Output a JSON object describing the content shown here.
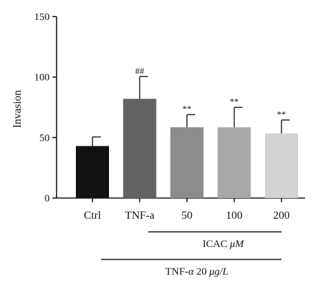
{
  "chart_data": {
    "type": "bar",
    "title": "",
    "xlabel": "",
    "ylabel": "Invasion",
    "ylim": [
      0,
      150
    ],
    "yticks": [
      0,
      50,
      100,
      150
    ],
    "grid": false,
    "categories": [
      "Ctrl",
      "TNF-a",
      "50",
      "100",
      "200"
    ],
    "values": [
      43,
      82,
      58.5,
      58.5,
      53.5
    ],
    "errors": [
      7.5,
      18.5,
      10.5,
      16.5,
      11
    ],
    "significance": [
      "",
      "##",
      "**",
      "**",
      "**"
    ],
    "colors": [
      "#111111",
      "#636363",
      "#8c8c8c",
      "#a8a8a8",
      "#d3d3d3"
    ],
    "groups": [
      {
        "label_main": "ICAC ",
        "label_unit": "μM",
        "from": 2,
        "to": 4
      },
      {
        "label_main": "TNF-",
        "label_greek": "α",
        "label_rest": " 20 ",
        "label_unit": "μg/L",
        "from": 1,
        "to": 4
      }
    ]
  }
}
